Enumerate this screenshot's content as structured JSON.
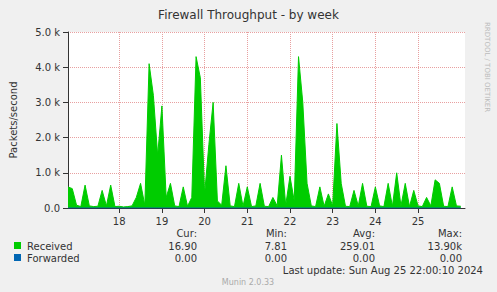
{
  "chart_data": {
    "type": "area",
    "title": "Firewall Throughput - by week",
    "y_label": "Packets/second",
    "side_text": "RRDTOOL / TOBI OETIKER",
    "footer": "Last update: Sun Aug 25 22:00:10 2024",
    "credit": "Munin 2.0.33",
    "stats_columns": [
      "Cur:",
      "Min:",
      "Avg:",
      "Max:"
    ],
    "grid": true,
    "xlim": [
      16.8,
      26.1
    ],
    "xticks": [
      18,
      19,
      20,
      21,
      22,
      23,
      24,
      25
    ],
    "ylim": [
      0,
      5000
    ],
    "yticks": [
      {
        "value": 0,
        "label": "0.0"
      },
      {
        "value": 1000,
        "label": "1.0 k"
      },
      {
        "value": 2000,
        "label": "2.0 k"
      },
      {
        "value": 3000,
        "label": "3.0 k"
      },
      {
        "value": 4000,
        "label": "4.0 k"
      },
      {
        "value": 5000,
        "label": "5.0 k"
      }
    ],
    "x": [
      16.8,
      16.9,
      17.0,
      17.1,
      17.2,
      17.3,
      17.4,
      17.5,
      17.6,
      17.7,
      17.8,
      17.9,
      18.0,
      18.1,
      18.2,
      18.3,
      18.4,
      18.5,
      18.6,
      18.7,
      18.8,
      18.9,
      19.0,
      19.1,
      19.2,
      19.3,
      19.4,
      19.5,
      19.6,
      19.7,
      19.8,
      19.9,
      20.0,
      20.1,
      20.2,
      20.3,
      20.4,
      20.5,
      20.6,
      20.7,
      20.8,
      20.9,
      21.0,
      21.1,
      21.2,
      21.3,
      21.4,
      21.5,
      21.6,
      21.7,
      21.8,
      21.9,
      22.0,
      22.1,
      22.2,
      22.3,
      22.4,
      22.5,
      22.6,
      22.7,
      22.8,
      22.9,
      23.0,
      23.1,
      23.2,
      23.3,
      23.4,
      23.5,
      23.6,
      23.7,
      23.8,
      23.9,
      24.0,
      24.1,
      24.2,
      24.3,
      24.4,
      24.5,
      24.6,
      24.7,
      24.8,
      24.9,
      25.0,
      25.1,
      25.2,
      25.3,
      25.4,
      25.5,
      25.6,
      25.7,
      25.8,
      25.9,
      26.0
    ],
    "series": [
      {
        "name": "Received",
        "color": "#00cc00",
        "stats": [
          "16.90",
          "7.81",
          "259.01",
          "13.90k"
        ],
        "values": [
          600,
          550,
          80,
          40,
          650,
          60,
          40,
          50,
          500,
          60,
          650,
          40,
          50,
          30,
          40,
          60,
          300,
          700,
          80,
          4100,
          3200,
          1500,
          2900,
          300,
          700,
          60,
          40,
          600,
          50,
          300,
          4300,
          3700,
          400,
          1800,
          3000,
          200,
          80,
          1200,
          60,
          40,
          700,
          50,
          600,
          40,
          60,
          700,
          50,
          40,
          300,
          60,
          1500,
          80,
          900,
          200,
          4300,
          3000,
          700,
          60,
          40,
          600,
          50,
          400,
          60,
          2400,
          700,
          50,
          40,
          500,
          60,
          700,
          50,
          40,
          600,
          60,
          40,
          700,
          50,
          1000,
          60,
          700,
          40,
          500,
          60,
          40,
          300,
          60,
          800,
          700,
          50,
          40,
          600,
          60,
          50
        ]
      },
      {
        "name": "Forwarded",
        "color": "#0066b3",
        "stats": [
          "0.00",
          "0.00",
          "0.00",
          "0.00"
        ],
        "values": [
          0,
          0,
          0,
          0,
          0,
          0,
          0,
          0,
          0,
          0,
          0,
          0,
          0,
          0,
          0,
          0,
          0,
          0,
          0,
          0,
          0,
          0,
          0,
          0,
          0,
          0,
          0,
          0,
          0,
          0,
          0,
          0,
          0,
          0,
          0,
          0,
          0,
          0,
          0,
          0,
          0,
          0,
          0,
          0,
          0,
          0,
          0,
          0,
          0,
          0,
          0,
          0,
          0,
          0,
          0,
          0,
          0,
          0,
          0,
          0,
          0,
          0,
          0,
          0,
          0,
          0,
          0,
          0,
          0,
          0,
          0,
          0,
          0,
          0,
          0,
          0,
          0,
          0,
          0,
          0,
          0,
          0,
          0,
          0,
          0,
          0,
          0,
          0,
          0,
          0,
          0,
          0,
          0
        ]
      }
    ]
  }
}
